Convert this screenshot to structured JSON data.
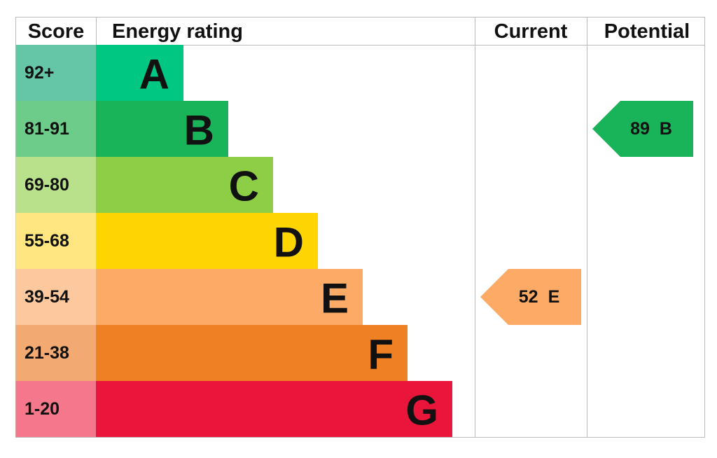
{
  "header": {
    "score": "Score",
    "rating": "Energy rating",
    "current": "Current",
    "potential": "Potential"
  },
  "bands": [
    {
      "score": "92+",
      "letter": "A",
      "color": "#00c781",
      "cell_color": "#64c6a6"
    },
    {
      "score": "81-91",
      "letter": "B",
      "color": "#19b459",
      "cell_color": "#6dcc8a"
    },
    {
      "score": "69-80",
      "letter": "C",
      "color": "#8dce46",
      "cell_color": "#b9e08a"
    },
    {
      "score": "55-68",
      "letter": "D",
      "color": "#ffd500",
      "cell_color": "#ffe680"
    },
    {
      "score": "39-54",
      "letter": "E",
      "color": "#fcaa65",
      "cell_color": "#fdc89e"
    },
    {
      "score": "21-38",
      "letter": "F",
      "color": "#ef8023",
      "cell_color": "#f2aa72"
    },
    {
      "score": "1-20",
      "letter": "G",
      "color": "#e9153b",
      "cell_color": "#f4778b"
    }
  ],
  "current": {
    "value": "52",
    "letter": "E"
  },
  "potential": {
    "value": "89",
    "letter": "B"
  }
}
